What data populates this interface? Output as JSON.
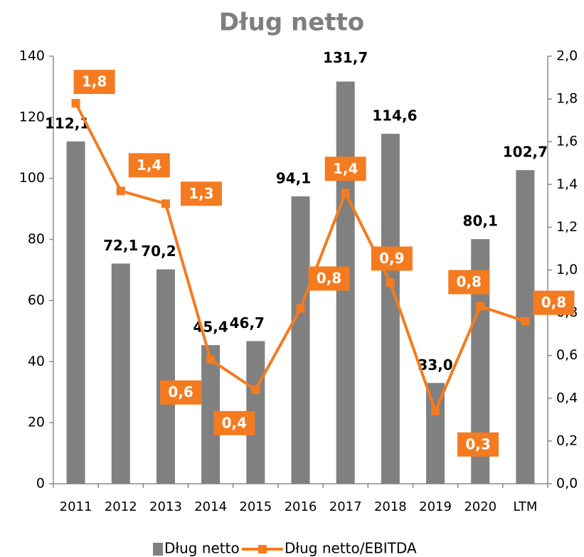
{
  "chart_data": {
    "type": "combo",
    "title": "Dług netto",
    "categories": [
      "2011",
      "2012",
      "2013",
      "2014",
      "2015",
      "2016",
      "2017",
      "2018",
      "2019",
      "2020",
      "LTM"
    ],
    "series": [
      {
        "name": "Dług netto",
        "type": "bar",
        "color": "#808080",
        "values": [
          112.1,
          72.1,
          70.2,
          45.4,
          46.7,
          94.1,
          131.7,
          114.6,
          33.0,
          80.1,
          102.7
        ],
        "value_labels": [
          "112,1",
          "72,1",
          "70,2",
          "45,4",
          "46,7",
          "94,1",
          "131,7",
          "114,6",
          "33,0",
          "80,1",
          "102,7"
        ]
      },
      {
        "name": "Dług netto/EBITDA",
        "type": "line",
        "axis": "y2",
        "color": "#f47b20",
        "values": [
          1.78,
          1.37,
          1.31,
          0.58,
          0.44,
          0.82,
          1.36,
          0.94,
          0.34,
          0.83,
          0.76
        ],
        "value_labels": [
          "1,8",
          "1,4",
          "1,3",
          "0,6",
          "0,4",
          "0,8",
          "1,4",
          "0,9",
          "0,3",
          "0,8",
          "0,8"
        ]
      }
    ],
    "ylim": [
      0,
      140
    ],
    "yticks": [
      0,
      20,
      40,
      60,
      80,
      100,
      120,
      140
    ],
    "y2lim": [
      0,
      2.0
    ],
    "y2ticks": [
      {
        "value": 0,
        "label": "0,0"
      },
      {
        "value": 0.2,
        "label": "0,2"
      },
      {
        "value": 0.4,
        "label": "0,4"
      },
      {
        "value": 0.6,
        "label": "0,6"
      },
      {
        "value": 0.8,
        "label": "0,8"
      },
      {
        "value": 1.0,
        "label": "1,0"
      },
      {
        "value": 1.2,
        "label": "1,2"
      },
      {
        "value": 1.4,
        "label": "1,4"
      },
      {
        "value": 1.6,
        "label": "1,6"
      },
      {
        "value": 1.8,
        "label": "1,8"
      },
      {
        "value": 2.0,
        "label": "2,0"
      }
    ],
    "grid": false,
    "legend": "bottom"
  }
}
